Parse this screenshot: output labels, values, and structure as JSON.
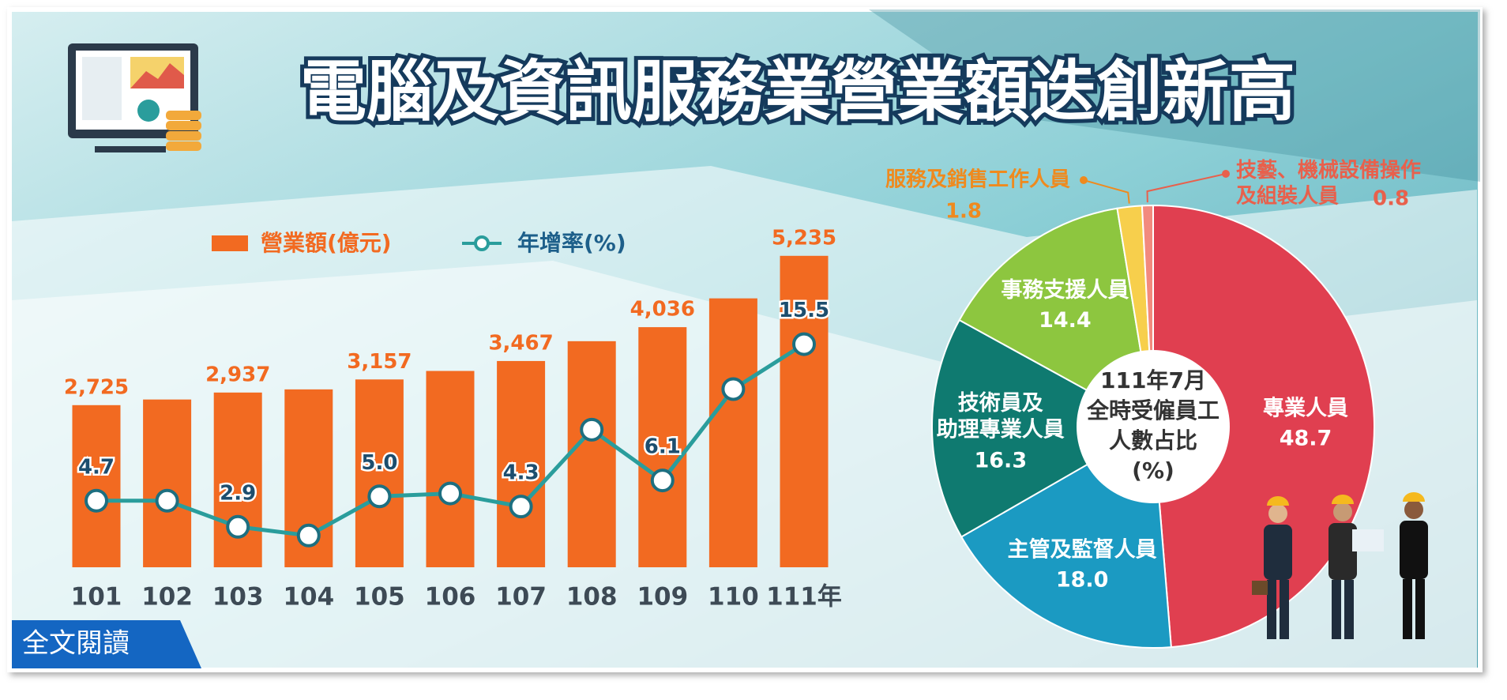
{
  "title": "電腦及資訊服務業營業額迭創新高",
  "button": "全文閱讀",
  "chart_data": [
    {
      "type": "bar",
      "categories": [
        "101",
        "102",
        "103",
        "104",
        "105",
        "106",
        "107",
        "108",
        "109",
        "110",
        "111年"
      ],
      "series": [
        {
          "name": "營業額(億元)",
          "type": "bar",
          "color": "#f26a21",
          "values": [
            2725,
            2820,
            2937,
            2990,
            3157,
            3300,
            3467,
            3800,
            4036,
            4520,
            5235
          ],
          "value_labels": [
            "2,725",
            null,
            "2,937",
            null,
            "3,157",
            null,
            "3,467",
            null,
            "4,036",
            null,
            "5,235"
          ]
        },
        {
          "name": "年增率(%)",
          "type": "line",
          "color": "#2a9d9c",
          "values": [
            4.7,
            4.7,
            2.9,
            2.3,
            5.0,
            5.2,
            4.3,
            9.6,
            6.1,
            12.4,
            15.5
          ],
          "value_labels": [
            "4.7",
            null,
            "2.9",
            null,
            "5.0",
            null,
            "4.3",
            null,
            "6.1",
            null,
            "15.5"
          ]
        }
      ]
    },
    {
      "type": "pie",
      "title": [
        "111年7月",
        "全時受僱員工",
        "人數占比",
        "(%)"
      ],
      "categories": [
        "專業人員",
        "主管及監督人員",
        "技術員及\n助理專業人員",
        "事務支援人員",
        "服務及銷售工作人員",
        "技藝、機械設備操作\n及組裝人員"
      ],
      "values": [
        48.7,
        18.0,
        16.3,
        14.4,
        1.8,
        0.8
      ],
      "value_labels": [
        "48.7",
        "18.0",
        "16.3",
        "14.4",
        "1.8",
        "0.8"
      ],
      "colors": [
        "#e03f50",
        "#1b9ac2",
        "#0f7a70",
        "#8dc63f",
        "#f7cf4c",
        "#f28a7e"
      ]
    }
  ]
}
